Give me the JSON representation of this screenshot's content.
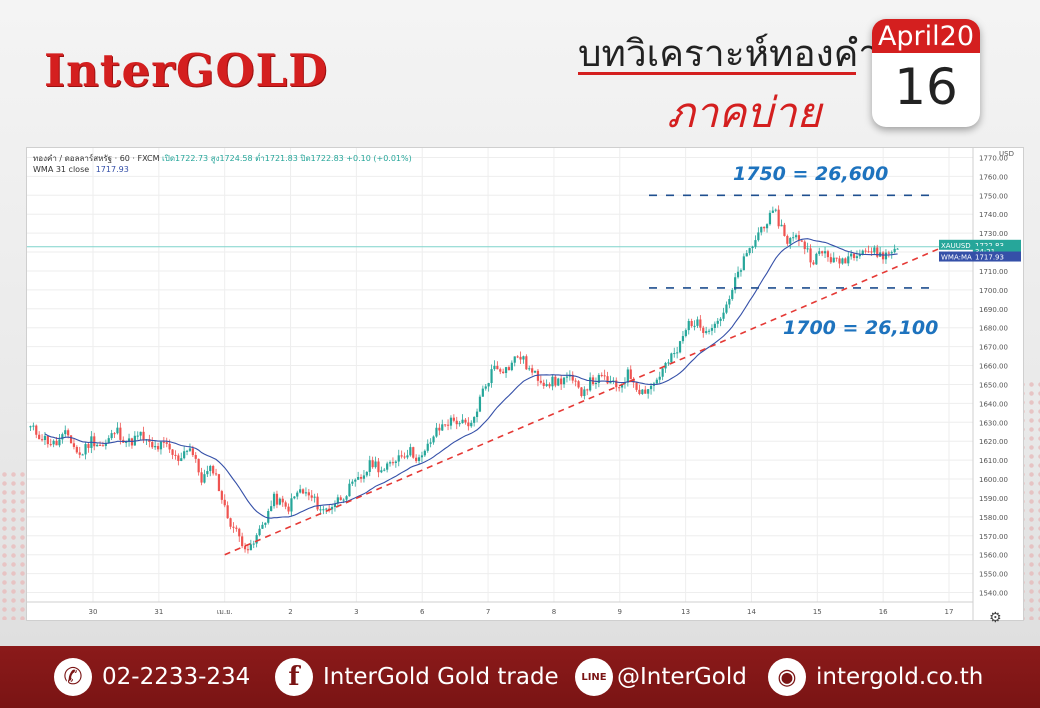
{
  "brand": {
    "logo": "InterGOLD"
  },
  "header": {
    "title": "บทวิเคราะห์ทองคำ",
    "subtitle": "ภาคบ่าย"
  },
  "calendar": {
    "month": "April20",
    "day": "16"
  },
  "chart_header": {
    "symbol": "ทองคำ / ดอลลาร์สหรัฐ · 60 · FXCM",
    "ohlc": "เปิด1722.73 สูง1724.58 ต่ำ1721.83 ปิด1722.83 +0.10 (+0.01%)",
    "indicator": "WMA 31 close",
    "indicator_value": "1717.93"
  },
  "annotations": {
    "upper": "1750 = 26,600",
    "lower": "1700 = 26,100"
  },
  "price_tags": {
    "symbol": "XAUUSD",
    "price": "1722.83",
    "countdown": "34:21",
    "wma_label": "WMA:MA",
    "wma_price": "1717.93"
  },
  "footer": {
    "phone": "02-2233-234",
    "facebook": "InterGold Gold trade",
    "line": "@InterGold",
    "web": "intergold.co.th",
    "icons": [
      "phone-icon",
      "facebook-icon",
      "line-icon",
      "globe-icon"
    ]
  },
  "colors": {
    "brand_red": "#d41f1f",
    "up": "#26a69a",
    "down": "#ef5350",
    "wma": "#3550a8",
    "trend": "#e53935",
    "level": "#1f4f8f",
    "annotation": "#1e73be",
    "footer": "#7a1414"
  },
  "chart_data": {
    "type": "candlestick",
    "series": [
      {
        "name": "WMA 31 close",
        "type": "line"
      }
    ],
    "currency": "USD",
    "ylim": [
      1535,
      1775
    ],
    "y_ticks": [
      "1770.00",
      "1760.00",
      "1750.00",
      "1740.00",
      "1730.00",
      "1720.00",
      "1710.00",
      "1700.00",
      "1690.00",
      "1680.00",
      "1670.00",
      "1660.00",
      "1650.00",
      "1640.00",
      "1630.00",
      "1620.00",
      "1610.00",
      "1600.00",
      "1590.00",
      "1580.00",
      "1570.00",
      "1560.00",
      "1550.00",
      "1540.00"
    ],
    "x_ticks": [
      "30",
      "31",
      "เม.ย.",
      "2",
      "3",
      "6",
      "7",
      "8",
      "9",
      "13",
      "14",
      "15",
      "16",
      "17"
    ],
    "levels": [
      1750,
      1701
    ],
    "trendline": {
      "from_label": "เม.ย.",
      "from": 1560,
      "to_label": "17",
      "to": 1724
    },
    "current_price": 1722.83,
    "wma_value": 1717.93,
    "path": [
      1627,
      1622,
      1618,
      1624,
      1612,
      1621,
      1617,
      1626,
      1619,
      1623,
      1616,
      1618,
      1610,
      1618,
      1600,
      1606,
      1582,
      1570,
      1562,
      1576,
      1590,
      1584,
      1594,
      1590,
      1583,
      1588,
      1594,
      1600,
      1609,
      1604,
      1612,
      1615,
      1610,
      1623,
      1630,
      1631,
      1626,
      1646,
      1660,
      1658,
      1666,
      1656,
      1652,
      1651,
      1654,
      1646,
      1652,
      1653,
      1648,
      1656,
      1646,
      1650,
      1660,
      1668,
      1684,
      1680,
      1682,
      1690,
      1710,
      1722,
      1735,
      1740,
      1726,
      1728,
      1716,
      1720,
      1714,
      1718,
      1722,
      1720,
      1718,
      1723
    ]
  }
}
